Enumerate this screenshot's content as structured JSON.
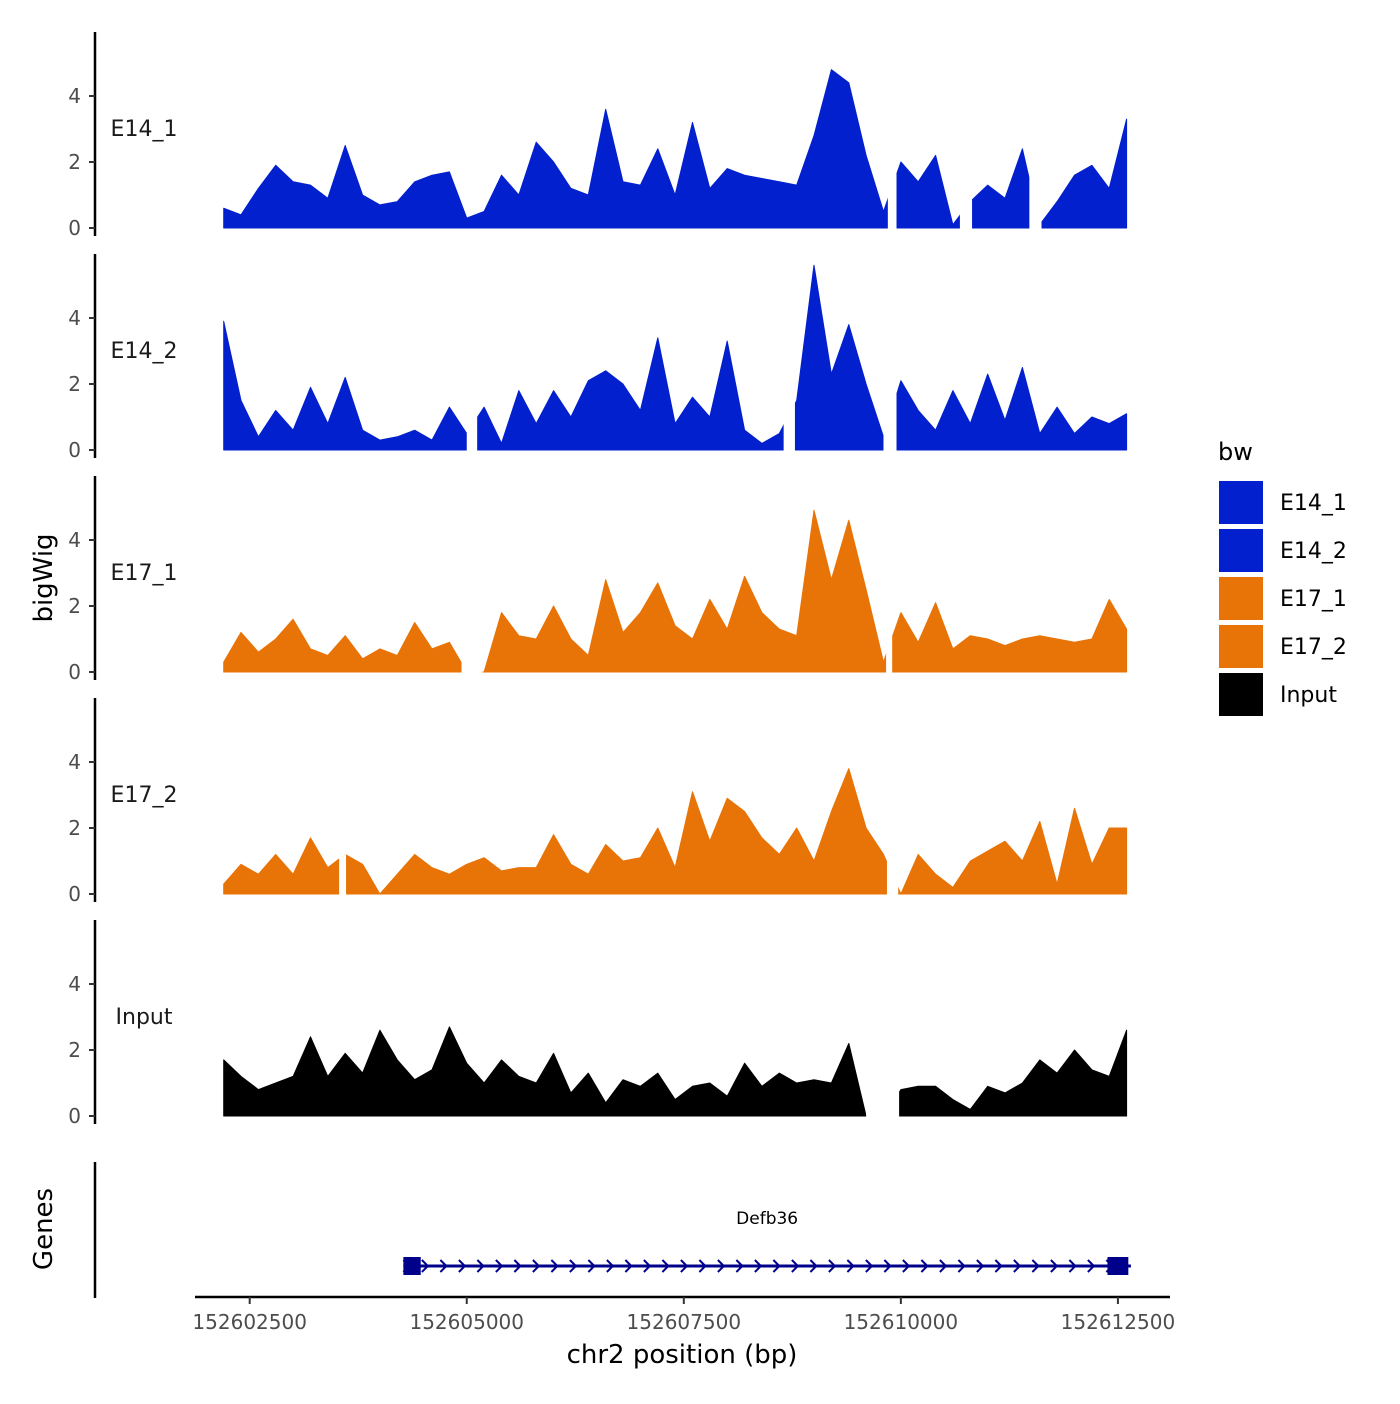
{
  "chart_data": {
    "type": "area",
    "title": "",
    "ylabel": "bigWig",
    "xlabel": "chr2 position (bp)",
    "genes_label": "Genes",
    "ylim": [
      0,
      6
    ],
    "y_ticks": [
      0,
      2,
      4
    ],
    "y_tick_labels": [
      "0",
      "2",
      "4"
    ],
    "x_range": [
      152601870,
      152613100
    ],
    "x_ticks": [
      152602500,
      152605000,
      152607500,
      152610000,
      152612500
    ],
    "x_tick_labels": [
      "152602500",
      "152605000",
      "152607500",
      "152610000",
      "152612500"
    ],
    "legend": {
      "title": "bw",
      "position": "right",
      "entries": [
        {
          "label": "E14_1",
          "color": "#0320CE"
        },
        {
          "label": "E14_2",
          "color": "#0320CE"
        },
        {
          "label": "E17_1",
          "color": "#E87306"
        },
        {
          "label": "E17_2",
          "color": "#E87306"
        },
        {
          "label": "Input",
          "color": "#000000"
        }
      ]
    },
    "series": [
      {
        "name": "E14_1",
        "color": "#0320CE",
        "x": [
          152602200,
          152602400,
          152602600,
          152602800,
          152603000,
          152603200,
          152603400,
          152603600,
          152603800,
          152604000,
          152604200,
          152604400,
          152604600,
          152604800,
          152605000,
          152605200,
          152605400,
          152605600,
          152605800,
          152606000,
          152606200,
          152606400,
          152606600,
          152606800,
          152607000,
          152607200,
          152607400,
          152607600,
          152607800,
          152608000,
          152608200,
          152608400,
          152608600,
          152608800,
          152609000,
          152609200,
          152609400,
          152609600,
          152609800,
          152610000,
          152610200,
          152610400,
          152610600,
          152610800,
          152611000,
          152611200,
          152611400,
          152611600,
          152611800,
          152612000,
          152612200,
          152612400,
          152612600
        ],
        "values": [
          0.6,
          0.4,
          1.2,
          1.9,
          1.4,
          1.3,
          0.9,
          2.5,
          1.0,
          0.7,
          0.8,
          1.4,
          1.6,
          1.7,
          0.3,
          0.5,
          1.6,
          1.0,
          2.6,
          2.0,
          1.2,
          1.0,
          3.6,
          1.4,
          1.3,
          2.4,
          1.0,
          3.2,
          1.2,
          1.8,
          1.6,
          1.5,
          1.4,
          1.3,
          2.8,
          4.8,
          4.4,
          2.2,
          0.5,
          2.0,
          1.4,
          2.2,
          0.1,
          0.8,
          1.3,
          0.9,
          2.4,
          0.1,
          0.8,
          1.6,
          1.9,
          1.2,
          3.3
        ],
        "gaps": [
          [
            152609850,
            152609950
          ],
          [
            152610680,
            152610820
          ],
          [
            152611480,
            152611620
          ]
        ]
      },
      {
        "name": "E14_2",
        "color": "#0320CE",
        "x": [
          152602200,
          152602400,
          152602600,
          152602800,
          152603000,
          152603200,
          152603400,
          152603600,
          152603800,
          152604000,
          152604200,
          152604400,
          152604600,
          152604800,
          152605000,
          152605200,
          152605400,
          152605600,
          152605800,
          152606000,
          152606200,
          152606400,
          152606600,
          152606800,
          152607000,
          152607200,
          152607400,
          152607600,
          152607800,
          152608000,
          152608200,
          152608400,
          152608600,
          152608800,
          152609000,
          152609200,
          152609400,
          152609600,
          152609800,
          152610000,
          152610200,
          152610400,
          152610600,
          152610800,
          152611000,
          152611200,
          152611400,
          152611600,
          152611800,
          152612000,
          152612200,
          152612400,
          152612600
        ],
        "values": [
          3.9,
          1.5,
          0.4,
          1.2,
          0.6,
          1.9,
          0.8,
          2.2,
          0.6,
          0.3,
          0.4,
          0.6,
          0.3,
          1.3,
          0.5,
          1.3,
          0.2,
          1.8,
          0.8,
          1.8,
          1.0,
          2.1,
          2.4,
          2.0,
          1.2,
          3.4,
          0.8,
          1.6,
          1.0,
          3.3,
          0.6,
          0.2,
          0.5,
          1.5,
          5.6,
          2.3,
          3.8,
          2.0,
          0.4,
          2.1,
          1.2,
          0.6,
          1.8,
          0.8,
          2.3,
          0.9,
          2.5,
          0.5,
          1.3,
          0.5,
          1.0,
          0.8,
          1.1
        ],
        "gaps": [
          [
            152605000,
            152605120
          ],
          [
            152608650,
            152608780
          ],
          [
            152609800,
            152609950
          ]
        ]
      },
      {
        "name": "E17_1",
        "color": "#E87306",
        "x": [
          152602200,
          152602400,
          152602600,
          152602800,
          152603000,
          152603200,
          152603400,
          152603600,
          152603800,
          152604000,
          152604200,
          152604400,
          152604600,
          152604800,
          152605000,
          152605200,
          152605400,
          152605600,
          152605800,
          152606000,
          152606200,
          152606400,
          152606600,
          152606800,
          152607000,
          152607200,
          152607400,
          152607600,
          152607800,
          152608000,
          152608200,
          152608400,
          152608600,
          152608800,
          152609000,
          152609200,
          152609400,
          152609600,
          152609800,
          152610000,
          152610200,
          152610400,
          152610600,
          152610800,
          152611000,
          152611200,
          152611400,
          152611600,
          152611800,
          152612000,
          152612200,
          152612400,
          152612600
        ],
        "values": [
          0.3,
          1.2,
          0.6,
          1.0,
          1.6,
          0.7,
          0.5,
          1.1,
          0.4,
          0.7,
          0.5,
          1.5,
          0.7,
          0.9,
          0.0,
          0.0,
          1.8,
          1.1,
          1.0,
          2.0,
          1.0,
          0.5,
          2.8,
          1.2,
          1.8,
          2.7,
          1.4,
          1.0,
          2.2,
          1.3,
          2.9,
          1.8,
          1.3,
          1.1,
          4.9,
          2.8,
          4.6,
          2.5,
          0.3,
          1.8,
          0.9,
          2.1,
          0.7,
          1.1,
          1.0,
          0.8,
          1.0,
          1.1,
          1.0,
          0.9,
          1.0,
          2.2,
          1.3
        ],
        "gaps": [
          [
            152604940,
            152605180
          ],
          [
            152609830,
            152609900
          ]
        ]
      },
      {
        "name": "E17_2",
        "color": "#E87306",
        "x": [
          152602200,
          152602400,
          152602600,
          152602800,
          152603000,
          152603200,
          152603400,
          152603600,
          152603800,
          152604000,
          152604200,
          152604400,
          152604600,
          152604800,
          152605000,
          152605200,
          152605400,
          152605600,
          152605800,
          152606000,
          152606200,
          152606400,
          152606600,
          152606800,
          152607000,
          152607200,
          152607400,
          152607600,
          152607800,
          152608000,
          152608200,
          152608400,
          152608600,
          152608800,
          152609000,
          152609200,
          152609400,
          152609600,
          152609800,
          152610000,
          152610200,
          152610400,
          152610600,
          152610800,
          152611000,
          152611200,
          152611400,
          152611600,
          152611800,
          152612000,
          152612200,
          152612400,
          152612600
        ],
        "values": [
          0.3,
          0.9,
          0.6,
          1.2,
          0.6,
          1.7,
          0.8,
          1.2,
          0.9,
          0.0,
          0.6,
          1.2,
          0.8,
          0.6,
          0.9,
          1.1,
          0.7,
          0.8,
          0.8,
          1.8,
          0.9,
          0.6,
          1.5,
          1.0,
          1.1,
          2.0,
          0.8,
          3.1,
          1.6,
          2.9,
          2.5,
          1.7,
          1.2,
          2.0,
          1.0,
          2.5,
          3.8,
          2.0,
          1.2,
          0.0,
          1.2,
          0.6,
          0.2,
          1.0,
          1.3,
          1.6,
          1.0,
          2.2,
          0.3,
          2.6,
          0.9,
          2.0,
          2.0
        ],
        "gaps": [
          [
            152603530,
            152603610
          ],
          [
            152609840,
            152609970
          ]
        ]
      },
      {
        "name": "Input",
        "color": "#000000",
        "x": [
          152602200,
          152602400,
          152602600,
          152602800,
          152603000,
          152603200,
          152603400,
          152603600,
          152603800,
          152604000,
          152604200,
          152604400,
          152604600,
          152604800,
          152605000,
          152605200,
          152605400,
          152605600,
          152605800,
          152606000,
          152606200,
          152606400,
          152606600,
          152606800,
          152607000,
          152607200,
          152607400,
          152607600,
          152607800,
          152608000,
          152608200,
          152608400,
          152608600,
          152608800,
          152609000,
          152609200,
          152609400,
          152609600,
          152609800,
          152610000,
          152610200,
          152610400,
          152610600,
          152610800,
          152611000,
          152611200,
          152611400,
          152611600,
          152611800,
          152612000,
          152612200,
          152612400,
          152612600
        ],
        "values": [
          1.7,
          1.2,
          0.8,
          1.0,
          1.2,
          2.4,
          1.2,
          1.9,
          1.3,
          2.6,
          1.7,
          1.1,
          1.4,
          2.7,
          1.6,
          1.0,
          1.7,
          1.2,
          1.0,
          1.9,
          0.7,
          1.3,
          0.4,
          1.1,
          0.9,
          1.3,
          0.5,
          0.9,
          1.0,
          0.6,
          1.6,
          0.9,
          1.3,
          1.0,
          1.1,
          1.0,
          2.2,
          0.0,
          0.0,
          0.8,
          0.9,
          0.9,
          0.5,
          0.2,
          0.9,
          0.7,
          1.0,
          1.7,
          1.3,
          2.0,
          1.4,
          1.2,
          2.6
        ],
        "gaps": [
          [
            152609600,
            152609980
          ]
        ]
      }
    ],
    "genes": [
      {
        "name": "Defb36",
        "start": 152604270,
        "end": 152612650,
        "strand": "+",
        "exons": [
          [
            152604270,
            152604470
          ],
          [
            152612380,
            152612620
          ]
        ]
      }
    ]
  }
}
